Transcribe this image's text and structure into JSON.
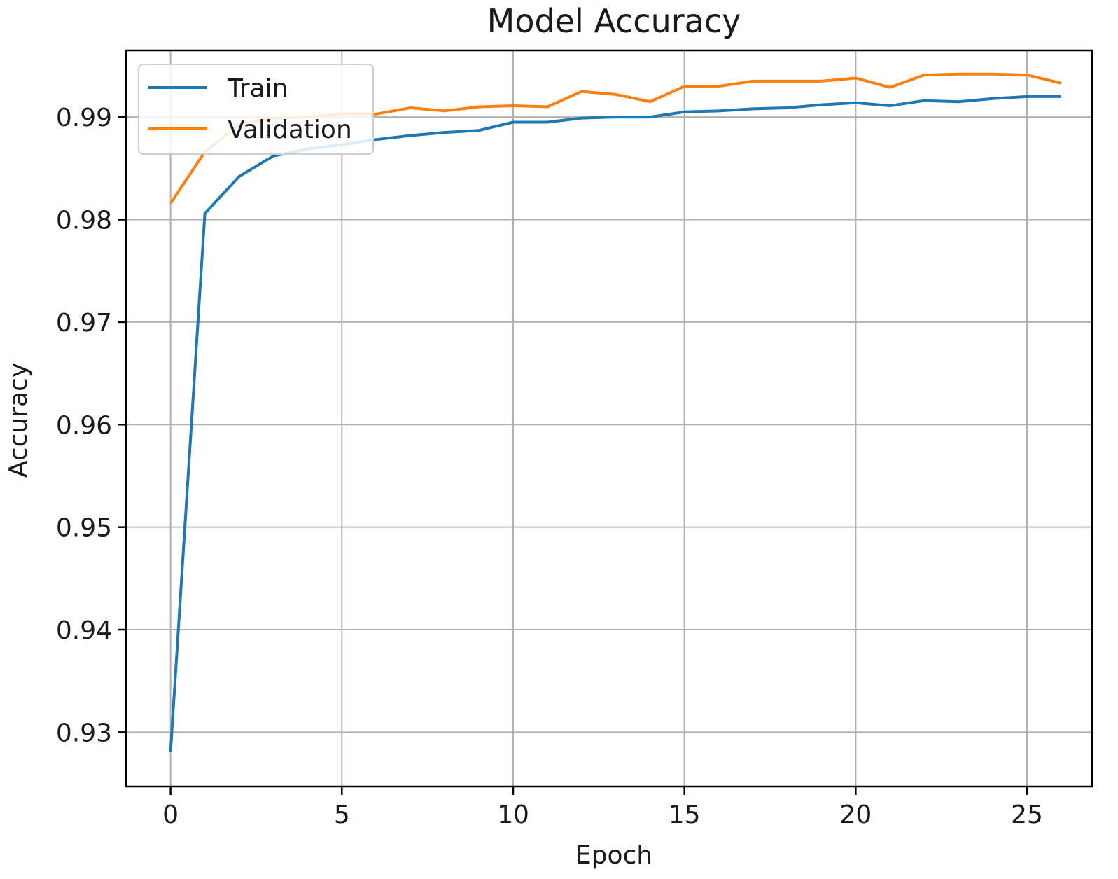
{
  "chart_data": {
    "type": "line",
    "title": "Model Accuracy",
    "xlabel": "Epoch",
    "ylabel": "Accuracy",
    "xlim": [
      -1.3,
      26.9
    ],
    "ylim": [
      0.9247,
      0.9965
    ],
    "xticks": [
      0,
      5,
      10,
      15,
      20,
      25
    ],
    "xtick_labels": [
      "0",
      "5",
      "10",
      "15",
      "20",
      "25"
    ],
    "yticks": [
      0.93,
      0.94,
      0.95,
      0.96,
      0.97,
      0.98,
      0.99
    ],
    "ytick_labels": [
      "0.93",
      "0.94",
      "0.95",
      "0.96",
      "0.97",
      "0.98",
      "0.99"
    ],
    "grid": true,
    "legend_position": "upper-left",
    "x": [
      0,
      1,
      2,
      3,
      4,
      5,
      6,
      7,
      8,
      9,
      10,
      11,
      12,
      13,
      14,
      15,
      16,
      17,
      18,
      19,
      20,
      21,
      22,
      23,
      24,
      25,
      26
    ],
    "series": [
      {
        "name": "Train",
        "color": "#1f77b4",
        "values": [
          0.9281,
          0.9806,
          0.9842,
          0.9862,
          0.9869,
          0.9873,
          0.9878,
          0.9882,
          0.9885,
          0.9887,
          0.9895,
          0.9895,
          0.9899,
          0.99,
          0.99,
          0.9905,
          0.9906,
          0.9908,
          0.9909,
          0.9912,
          0.9914,
          0.9911,
          0.9916,
          0.9915,
          0.9918,
          0.992,
          0.992
        ]
      },
      {
        "name": "Validation",
        "color": "#ff7f0e",
        "values": [
          0.9816,
          0.9866,
          0.9893,
          0.9899,
          0.99,
          0.9903,
          0.9903,
          0.9909,
          0.9906,
          0.991,
          0.9911,
          0.991,
          0.9925,
          0.9922,
          0.9915,
          0.993,
          0.993,
          0.9935,
          0.9935,
          0.9935,
          0.9938,
          0.9929,
          0.9941,
          0.9942,
          0.9942,
          0.9941,
          0.9933
        ]
      }
    ]
  }
}
